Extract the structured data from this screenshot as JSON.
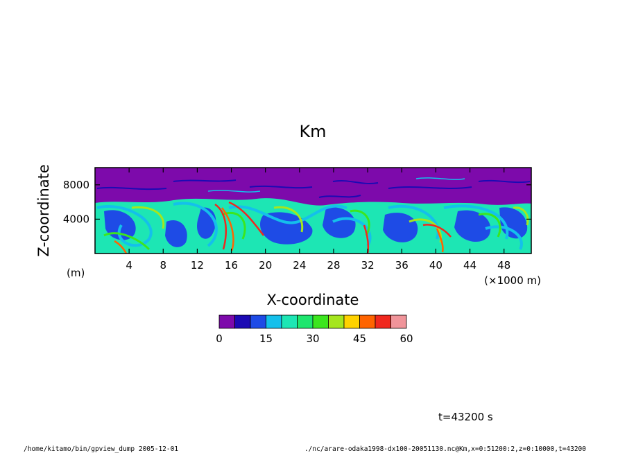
{
  "chart_data": {
    "type": "heatmap",
    "title": "Km",
    "xlabel": "X-coordinate",
    "ylabel": "Z-coordinate",
    "x_unit": "(×1000 m)",
    "y_unit": "(m)",
    "xlim": [
      0,
      51.2
    ],
    "ylim": [
      0,
      10000
    ],
    "x_ticks": [
      "4",
      "8",
      "12",
      "16",
      "20",
      "24",
      "28",
      "32",
      "36",
      "40",
      "44",
      "48"
    ],
    "y_ticks": [
      "4000",
      "8000"
    ],
    "x_tick_values": [
      4,
      8,
      12,
      16,
      20,
      24,
      28,
      32,
      36,
      40,
      44,
      48
    ],
    "y_tick_values": [
      4000,
      8000
    ],
    "colorbar": {
      "min": 0,
      "max": 60,
      "step": 5,
      "labels": [
        "0",
        "15",
        "30",
        "45",
        "60"
      ],
      "label_values": [
        0,
        15,
        30,
        45,
        60
      ],
      "colors": [
        "#7d0aab",
        "#1c0ab4",
        "#1e4be6",
        "#14c0eb",
        "#1de6b4",
        "#1ee66e",
        "#3ce61e",
        "#a5e61e",
        "#ffd200",
        "#ff6400",
        "#f0281e",
        "#f0949a"
      ]
    },
    "grid": false
  },
  "annotations": {
    "time": "t=43200 s",
    "footer_left": "/home/kitamo/bin/gpview_dump  2005-12-01",
    "footer_right": "./nc/arare-odaka1998-dx100-20051130.nc@Km,x=0:51200:2,z=0:10000,t=43200"
  }
}
